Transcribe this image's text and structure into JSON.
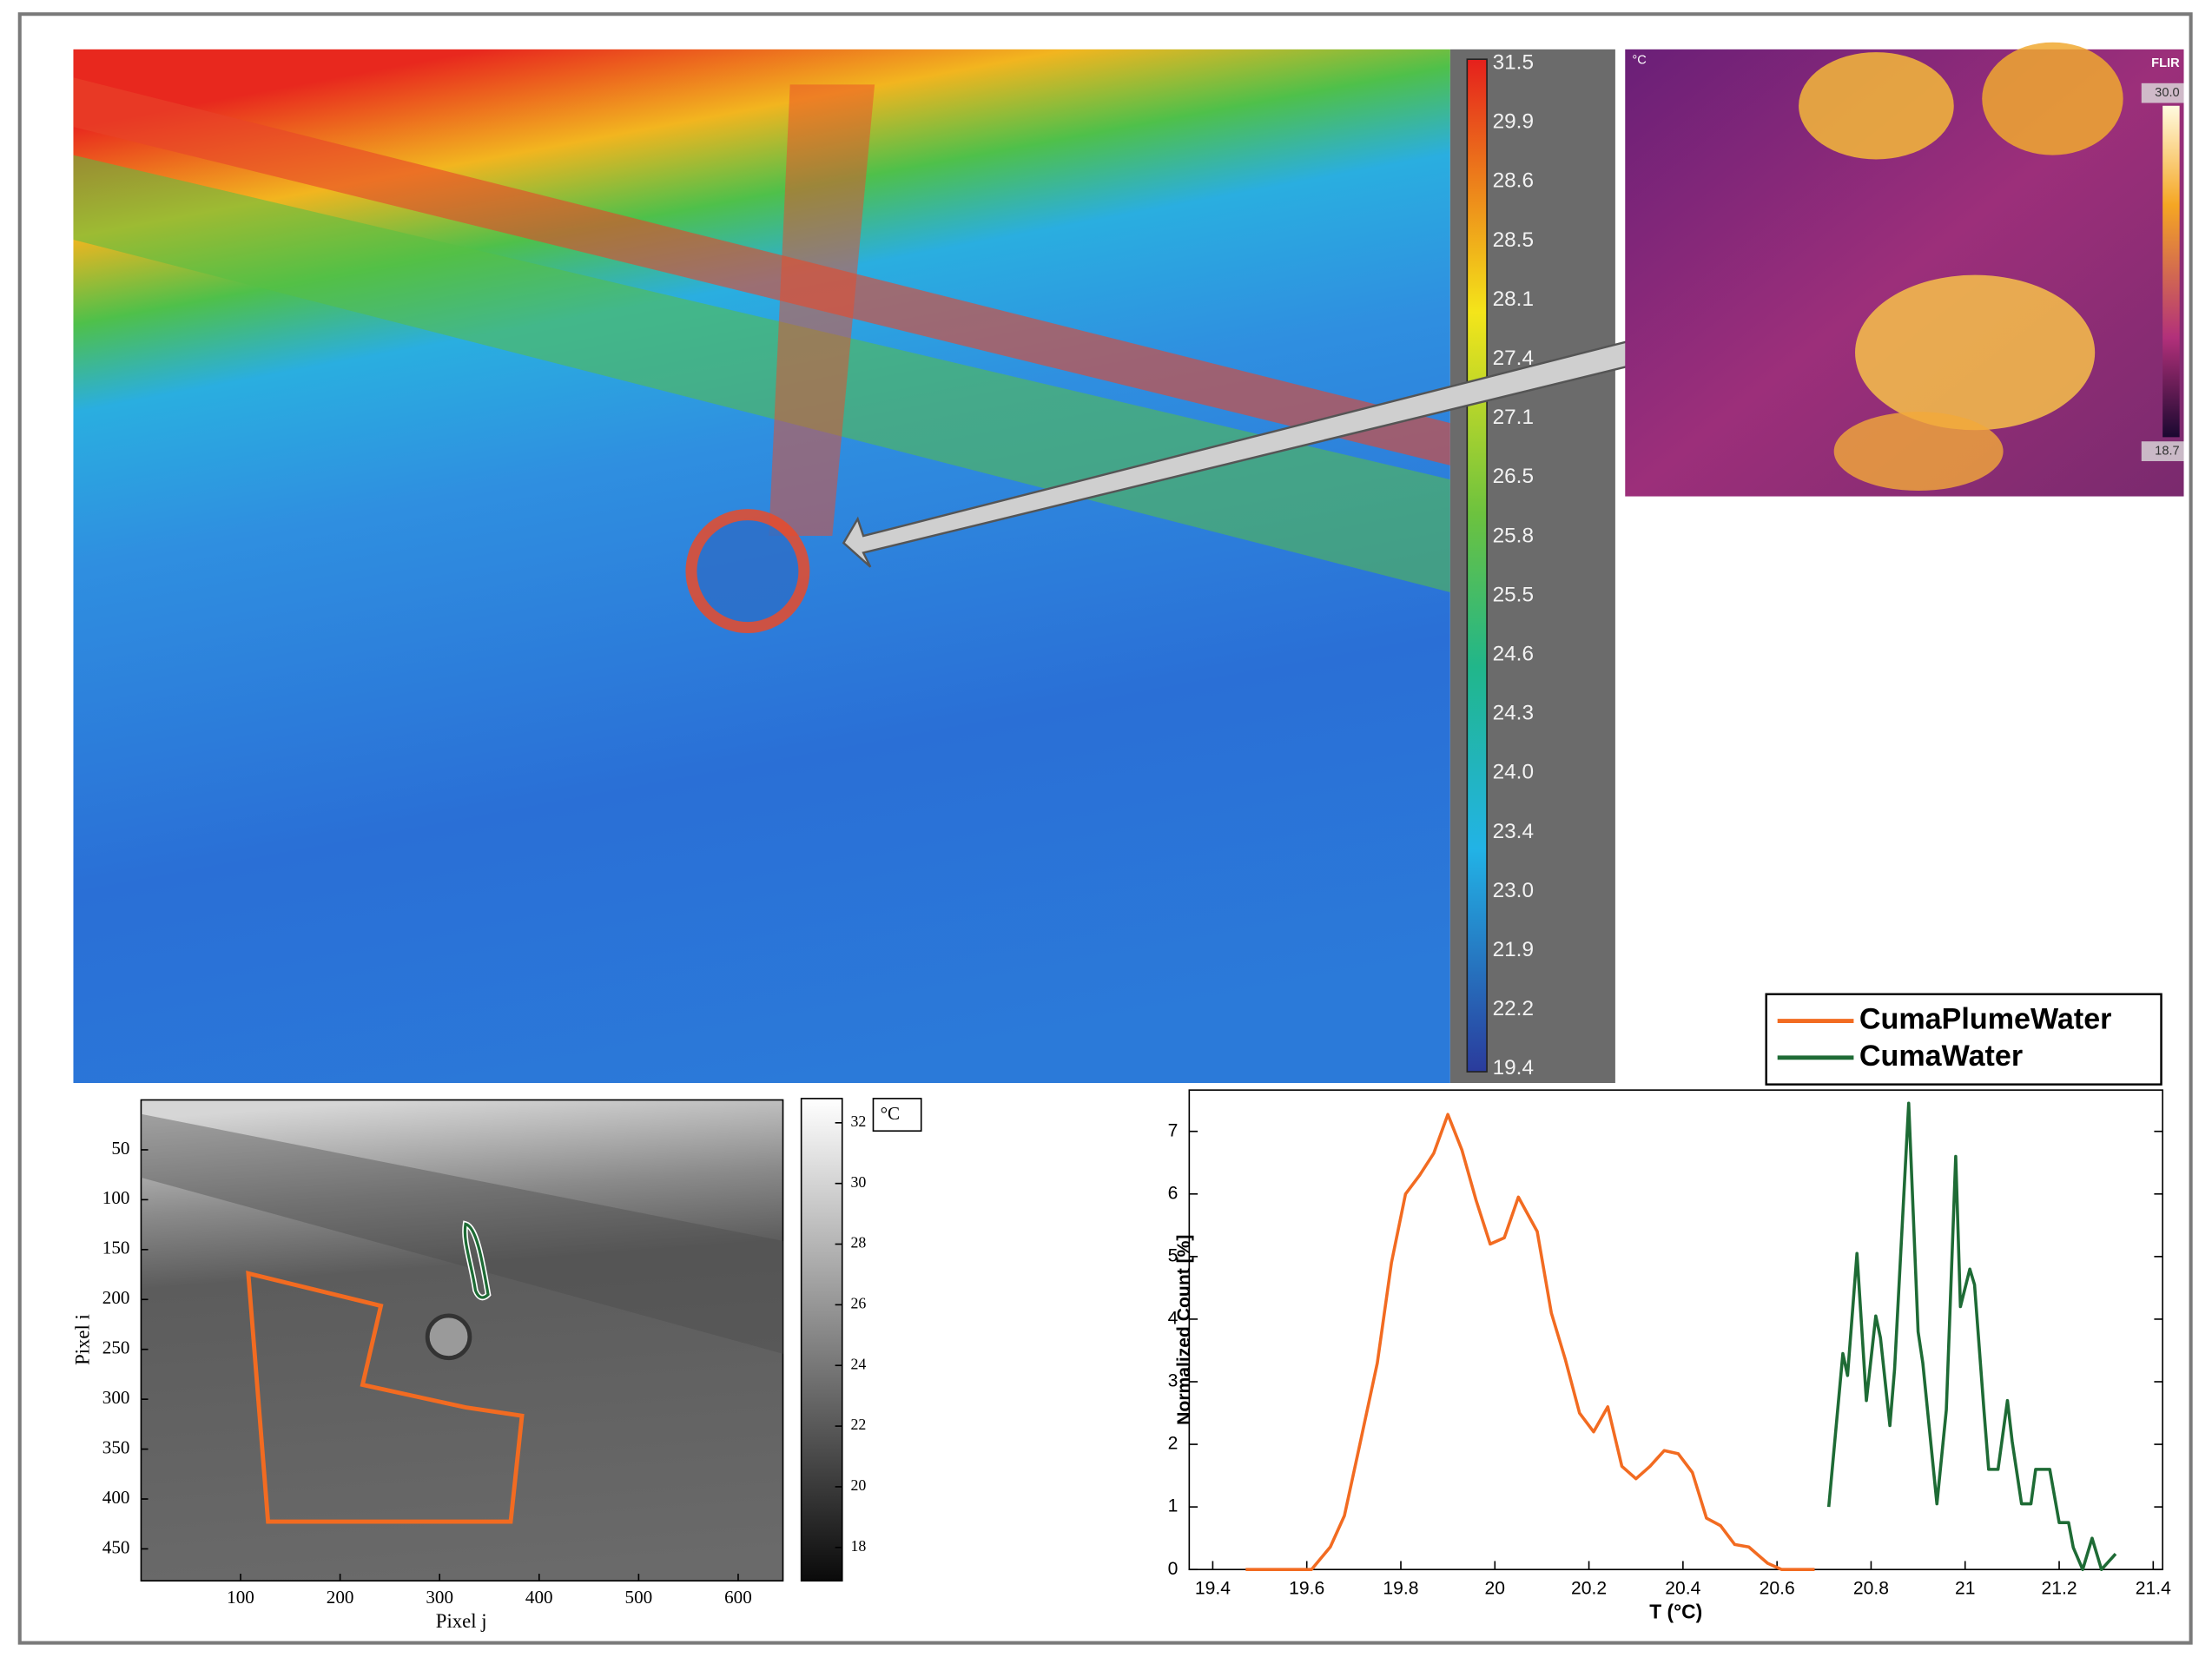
{
  "thermal_map": {
    "colorbar_labels": [
      "31.5",
      "29.9",
      "28.6",
      "28.5",
      "28.1",
      "27.4",
      "27.1",
      "26.5",
      "25.8",
      "25.5",
      "24.6",
      "24.3",
      "24.0",
      "23.4",
      "23.0",
      "21.9",
      "22.2",
      "19.4"
    ]
  },
  "flir_inset": {
    "unit": "°C",
    "brand": "FLIR",
    "max_label": "30.0",
    "min_label": "18.7"
  },
  "gray_image": {
    "xlabel": "Pixel j",
    "ylabel": "Pixel i",
    "xlim": [
      0,
      645
    ],
    "ylim": [
      0,
      482
    ],
    "xticks": [
      100,
      200,
      300,
      400,
      500,
      600
    ],
    "yticks": [
      50,
      100,
      150,
      200,
      250,
      300,
      350,
      400,
      450
    ],
    "colorbar_unit": "°C",
    "colorbar_lim": [
      16.9,
      32.8
    ],
    "colorbar_ticks": [
      18,
      20,
      22,
      24,
      26,
      28,
      30,
      32
    ]
  },
  "chart_data": {
    "type": "line",
    "xlabel": "T (°C)",
    "ylabel": "Normalized Count [%]",
    "xlim": [
      19.35,
      21.42
    ],
    "ylim": [
      0,
      7.66
    ],
    "xticks": [
      19.4,
      19.6,
      19.8,
      20,
      20.2,
      20.4,
      20.6,
      20.8,
      21,
      21.2,
      21.4
    ],
    "yticks": [
      0,
      1,
      2,
      3,
      4,
      5,
      6,
      7
    ],
    "legend": "upper right",
    "series": [
      {
        "name": "CumaPlumeWater",
        "color": "#f26b21",
        "x": [
          19.47,
          19.61,
          19.65,
          19.68,
          19.71,
          19.75,
          19.78,
          19.81,
          19.84,
          19.87,
          19.9,
          19.93,
          19.96,
          19.99,
          20.02,
          20.05,
          20.09,
          20.12,
          20.15,
          20.18,
          20.21,
          20.24,
          20.27,
          20.3,
          20.33,
          20.36,
          20.39,
          20.42,
          20.45,
          20.48,
          20.51,
          20.54,
          20.58,
          20.61,
          20.68
        ],
        "values": [
          0,
          0,
          0.36,
          0.86,
          1.9,
          3.3,
          4.9,
          6.0,
          6.3,
          6.65,
          7.27,
          6.7,
          5.9,
          5.2,
          5.3,
          5.95,
          5.4,
          4.1,
          3.35,
          2.5,
          2.2,
          2.6,
          1.65,
          1.45,
          1.65,
          1.9,
          1.85,
          1.55,
          0.82,
          0.7,
          0.4,
          0.36,
          0.1,
          0,
          0
        ]
      },
      {
        "name": "CumaWater",
        "color": "#1e6b35",
        "x": [
          20.71,
          20.74,
          20.75,
          20.77,
          20.79,
          20.81,
          20.82,
          20.84,
          20.85,
          20.88,
          20.9,
          20.91,
          20.94,
          20.96,
          20.98,
          20.99,
          21.01,
          21.02,
          21.04,
          21.05,
          21.07,
          21.09,
          21.1,
          21.12,
          21.14,
          21.15,
          21.18,
          21.2,
          21.22,
          21.23,
          21.25,
          21.27,
          21.29,
          21.32
        ],
        "values": [
          1.0,
          3.45,
          3.1,
          5.05,
          2.7,
          4.05,
          3.7,
          2.3,
          3.2,
          7.45,
          3.8,
          3.3,
          1.05,
          2.55,
          6.6,
          4.2,
          4.8,
          4.55,
          2.55,
          1.6,
          1.6,
          2.7,
          2.05,
          1.05,
          1.05,
          1.6,
          1.6,
          0.75,
          0.75,
          0.35,
          0,
          0.5,
          0,
          0.25
        ]
      }
    ]
  }
}
